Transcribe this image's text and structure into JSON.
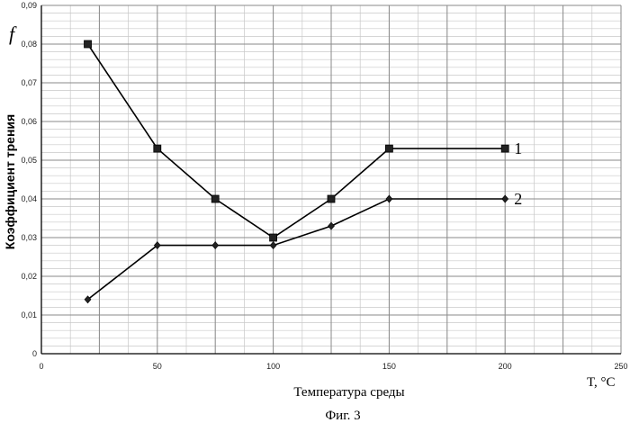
{
  "chart_data": {
    "type": "line",
    "symbol": "f",
    "ylabel": "Коэффициент трения",
    "xlabel": "Температура среды",
    "x_unit": "T, °C",
    "caption": "Фиг. 3",
    "xlim": [
      0,
      250
    ],
    "ylim": [
      0,
      0.09
    ],
    "xticks": [
      "0",
      "50",
      "100",
      "150",
      "200",
      "250"
    ],
    "yticks": [
      "0",
      "0,01",
      "0,02",
      "0,03",
      "0,04",
      "0,05",
      "0,06",
      "0,07",
      "0,08",
      "0,09"
    ],
    "grid": true,
    "series": [
      {
        "name": "1",
        "marker": "square",
        "x": [
          20,
          50,
          75,
          100,
          125,
          150,
          200
        ],
        "y": [
          0.08,
          0.053,
          0.04,
          0.03,
          0.04,
          0.053,
          0.053
        ]
      },
      {
        "name": "2",
        "marker": "diamond",
        "x": [
          20,
          50,
          75,
          100,
          125,
          150,
          200
        ],
        "y": [
          0.014,
          0.028,
          0.028,
          0.028,
          0.033,
          0.04,
          0.04
        ]
      }
    ]
  }
}
